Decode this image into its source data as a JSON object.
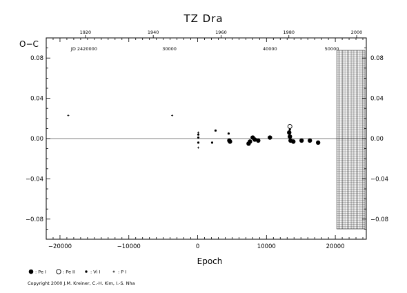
{
  "chart_data": {
    "type": "scatter",
    "title": "TZ Dra",
    "xlabel": "Epoch",
    "ylabel": "O−C",
    "xlim": [
      -22000,
      24500
    ],
    "ylim": [
      -0.1,
      0.1
    ],
    "x_ticks": [
      -20000,
      -10000,
      0,
      10000,
      20000
    ],
    "x_tick_labels": [
      "−20000",
      "−10000",
      "0",
      "10000",
      "20000"
    ],
    "y_ticks": [
      0.08,
      0.04,
      0.0,
      -0.04,
      -0.08
    ],
    "y_tick_labels": [
      "0.08",
      "0.04",
      "0.00",
      "−0.04",
      "−0.08"
    ],
    "top_year_ticks": [
      {
        "label": "1920",
        "epoch": -16300
      },
      {
        "label": "1940",
        "epoch": -6450
      },
      {
        "label": "1960",
        "epoch": 3400
      },
      {
        "label": "1980",
        "epoch": 13250
      },
      {
        "label": "2000",
        "epoch": 23100
      }
    ],
    "jd_ticks": [
      {
        "label": "JD 2420000",
        "epoch": -19000
      },
      {
        "label": "30000",
        "epoch": -4100
      },
      {
        "label": "40000",
        "epoch": 10500
      },
      {
        "label": "50000",
        "epoch": 25000
      }
    ],
    "hatched_region": {
      "x_start": 20200
    },
    "legend": [
      {
        "symbol": "filled-large",
        "label": ": Pe I"
      },
      {
        "symbol": "open",
        "label": ": Pe II"
      },
      {
        "symbol": "filled-small",
        "label": ": Vi I"
      },
      {
        "symbol": "plus",
        "label": ": P I"
      }
    ],
    "series": [
      {
        "symbol": "filled-large",
        "points": [
          [
            4600,
            -0.002
          ],
          [
            4700,
            -0.003
          ],
          [
            7400,
            -0.005
          ],
          [
            7600,
            -0.003
          ],
          [
            8000,
            0.001
          ],
          [
            8300,
            -0.001
          ],
          [
            8800,
            -0.002
          ],
          [
            10500,
            0.001
          ],
          [
            13300,
            0.006
          ],
          [
            13400,
            0.002
          ],
          [
            13500,
            -0.002
          ],
          [
            13900,
            -0.003
          ],
          [
            15100,
            -0.002
          ],
          [
            16300,
            -0.002
          ],
          [
            17500,
            -0.004
          ]
        ]
      },
      {
        "symbol": "open",
        "points": [
          [
            13400,
            0.012
          ]
        ]
      },
      {
        "symbol": "filled-small",
        "points": [
          [
            100,
            0.004
          ],
          [
            100,
            0.001
          ],
          [
            100,
            -0.004
          ],
          [
            2100,
            -0.004
          ],
          [
            2600,
            0.008
          ],
          [
            4500,
            0.005
          ],
          [
            13400,
            0.009
          ]
        ]
      },
      {
        "symbol": "plus",
        "points": [
          [
            -18800,
            0.023
          ],
          [
            -3700,
            0.023
          ],
          [
            100,
            0.006
          ],
          [
            100,
            -0.009
          ]
        ]
      }
    ]
  },
  "copyright": "Copyright 2000 J.M. Kreiner, C.-H. Kim, I.-S. Nha"
}
